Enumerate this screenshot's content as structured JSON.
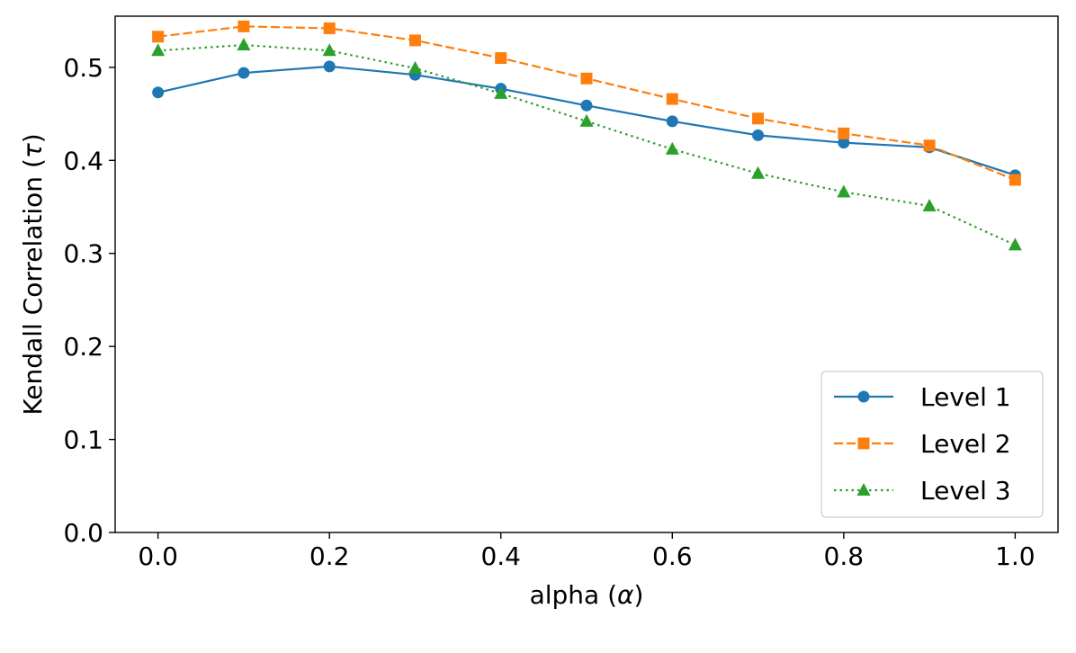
{
  "chart_data": {
    "type": "line",
    "title": "",
    "xlabel_prefix": "alpha (",
    "xlabel_symbol": "α",
    "xlabel_suffix": ")",
    "ylabel_prefix": "Kendall Correlation (",
    "ylabel_symbol": "τ",
    "ylabel_suffix": ")",
    "x": [
      0.0,
      0.1,
      0.2,
      0.3,
      0.4,
      0.5,
      0.6,
      0.7,
      0.8,
      0.9,
      1.0
    ],
    "xlim": [
      -0.05,
      1.05
    ],
    "ylim": [
      0.0,
      0.555
    ],
    "xticks": [
      0.0,
      0.2,
      0.4,
      0.6,
      0.8,
      1.0
    ],
    "xtick_labels": [
      "0.0",
      "0.2",
      "0.4",
      "0.6",
      "0.8",
      "1.0"
    ],
    "yticks": [
      0.0,
      0.1,
      0.2,
      0.3,
      0.4,
      0.5
    ],
    "ytick_labels": [
      "0.0",
      "0.1",
      "0.2",
      "0.3",
      "0.4",
      "0.5"
    ],
    "grid": false,
    "legend_position": "lower-right",
    "series": [
      {
        "name": "Level 1",
        "color": "#1f77b4",
        "linestyle": "solid",
        "marker": "circle",
        "values": [
          0.473,
          0.494,
          0.501,
          0.492,
          0.477,
          0.459,
          0.442,
          0.427,
          0.419,
          0.414,
          0.384
        ]
      },
      {
        "name": "Level 2",
        "color": "#ff7f0e",
        "linestyle": "dashed",
        "marker": "square",
        "values": [
          0.533,
          0.544,
          0.542,
          0.529,
          0.51,
          0.488,
          0.466,
          0.445,
          0.429,
          0.416,
          0.379
        ]
      },
      {
        "name": "Level 3",
        "color": "#2ca02c",
        "linestyle": "dotted",
        "marker": "triangle",
        "values": [
          0.518,
          0.524,
          0.518,
          0.499,
          0.472,
          0.442,
          0.412,
          0.386,
          0.366,
          0.351,
          0.309
        ]
      }
    ]
  }
}
